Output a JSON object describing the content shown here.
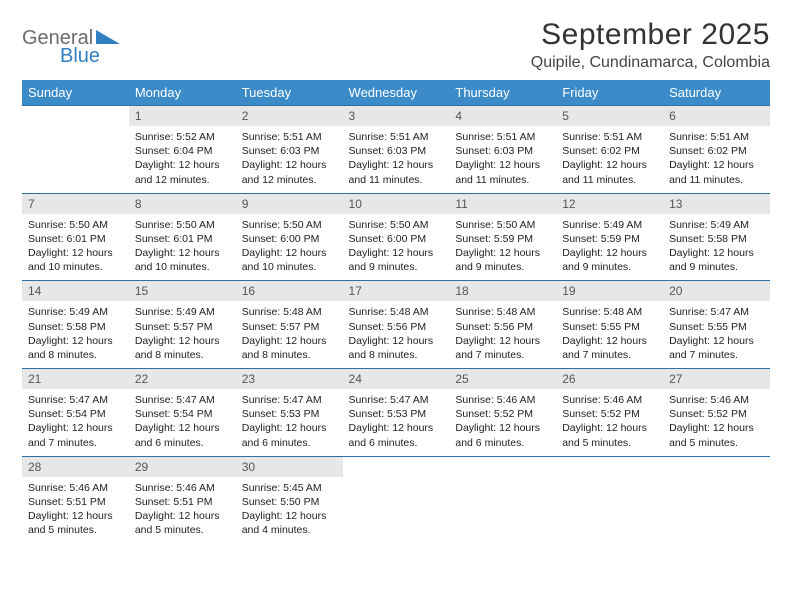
{
  "brand": {
    "word1": "General",
    "word2": "Blue",
    "word1_color": "#6b6b6b",
    "word2_color": "#2f7fc2"
  },
  "title": "September 2025",
  "location": "Quipile, Cundinamarca, Colombia",
  "style": {
    "header_bg": "#3b8bc9",
    "header_fg": "#ffffff",
    "daynum_bg": "#e7e7e7",
    "rule_color": "#2f6fa3",
    "page_bg": "#ffffff",
    "text_color": "#222222",
    "title_fontsize": 30,
    "location_fontsize": 16,
    "dayhead_fontsize": 13,
    "daynum_fontsize": 12,
    "detail_fontsize": 10.5
  },
  "day_headers": [
    "Sunday",
    "Monday",
    "Tuesday",
    "Wednesday",
    "Thursday",
    "Friday",
    "Saturday"
  ],
  "weeks": [
    {
      "nums": [
        "",
        "1",
        "2",
        "3",
        "4",
        "5",
        "6"
      ],
      "cells": [
        null,
        {
          "sunrise": "5:52 AM",
          "sunset": "6:04 PM",
          "daylight": "12 hours and 12 minutes."
        },
        {
          "sunrise": "5:51 AM",
          "sunset": "6:03 PM",
          "daylight": "12 hours and 12 minutes."
        },
        {
          "sunrise": "5:51 AM",
          "sunset": "6:03 PM",
          "daylight": "12 hours and 11 minutes."
        },
        {
          "sunrise": "5:51 AM",
          "sunset": "6:03 PM",
          "daylight": "12 hours and 11 minutes."
        },
        {
          "sunrise": "5:51 AM",
          "sunset": "6:02 PM",
          "daylight": "12 hours and 11 minutes."
        },
        {
          "sunrise": "5:51 AM",
          "sunset": "6:02 PM",
          "daylight": "12 hours and 11 minutes."
        }
      ]
    },
    {
      "nums": [
        "7",
        "8",
        "9",
        "10",
        "11",
        "12",
        "13"
      ],
      "cells": [
        {
          "sunrise": "5:50 AM",
          "sunset": "6:01 PM",
          "daylight": "12 hours and 10 minutes."
        },
        {
          "sunrise": "5:50 AM",
          "sunset": "6:01 PM",
          "daylight": "12 hours and 10 minutes."
        },
        {
          "sunrise": "5:50 AM",
          "sunset": "6:00 PM",
          "daylight": "12 hours and 10 minutes."
        },
        {
          "sunrise": "5:50 AM",
          "sunset": "6:00 PM",
          "daylight": "12 hours and 9 minutes."
        },
        {
          "sunrise": "5:50 AM",
          "sunset": "5:59 PM",
          "daylight": "12 hours and 9 minutes."
        },
        {
          "sunrise": "5:49 AM",
          "sunset": "5:59 PM",
          "daylight": "12 hours and 9 minutes."
        },
        {
          "sunrise": "5:49 AM",
          "sunset": "5:58 PM",
          "daylight": "12 hours and 9 minutes."
        }
      ]
    },
    {
      "nums": [
        "14",
        "15",
        "16",
        "17",
        "18",
        "19",
        "20"
      ],
      "cells": [
        {
          "sunrise": "5:49 AM",
          "sunset": "5:58 PM",
          "daylight": "12 hours and 8 minutes."
        },
        {
          "sunrise": "5:49 AM",
          "sunset": "5:57 PM",
          "daylight": "12 hours and 8 minutes."
        },
        {
          "sunrise": "5:48 AM",
          "sunset": "5:57 PM",
          "daylight": "12 hours and 8 minutes."
        },
        {
          "sunrise": "5:48 AM",
          "sunset": "5:56 PM",
          "daylight": "12 hours and 8 minutes."
        },
        {
          "sunrise": "5:48 AM",
          "sunset": "5:56 PM",
          "daylight": "12 hours and 7 minutes."
        },
        {
          "sunrise": "5:48 AM",
          "sunset": "5:55 PM",
          "daylight": "12 hours and 7 minutes."
        },
        {
          "sunrise": "5:47 AM",
          "sunset": "5:55 PM",
          "daylight": "12 hours and 7 minutes."
        }
      ]
    },
    {
      "nums": [
        "21",
        "22",
        "23",
        "24",
        "25",
        "26",
        "27"
      ],
      "cells": [
        {
          "sunrise": "5:47 AM",
          "sunset": "5:54 PM",
          "daylight": "12 hours and 7 minutes."
        },
        {
          "sunrise": "5:47 AM",
          "sunset": "5:54 PM",
          "daylight": "12 hours and 6 minutes."
        },
        {
          "sunrise": "5:47 AM",
          "sunset": "5:53 PM",
          "daylight": "12 hours and 6 minutes."
        },
        {
          "sunrise": "5:47 AM",
          "sunset": "5:53 PM",
          "daylight": "12 hours and 6 minutes."
        },
        {
          "sunrise": "5:46 AM",
          "sunset": "5:52 PM",
          "daylight": "12 hours and 6 minutes."
        },
        {
          "sunrise": "5:46 AM",
          "sunset": "5:52 PM",
          "daylight": "12 hours and 5 minutes."
        },
        {
          "sunrise": "5:46 AM",
          "sunset": "5:52 PM",
          "daylight": "12 hours and 5 minutes."
        }
      ]
    },
    {
      "nums": [
        "28",
        "29",
        "30",
        "",
        "",
        "",
        ""
      ],
      "cells": [
        {
          "sunrise": "5:46 AM",
          "sunset": "5:51 PM",
          "daylight": "12 hours and 5 minutes."
        },
        {
          "sunrise": "5:46 AM",
          "sunset": "5:51 PM",
          "daylight": "12 hours and 5 minutes."
        },
        {
          "sunrise": "5:45 AM",
          "sunset": "5:50 PM",
          "daylight": "12 hours and 4 minutes."
        },
        null,
        null,
        null,
        null
      ]
    }
  ],
  "labels": {
    "sunrise": "Sunrise: ",
    "sunset": "Sunset: ",
    "daylight": "Daylight: "
  }
}
